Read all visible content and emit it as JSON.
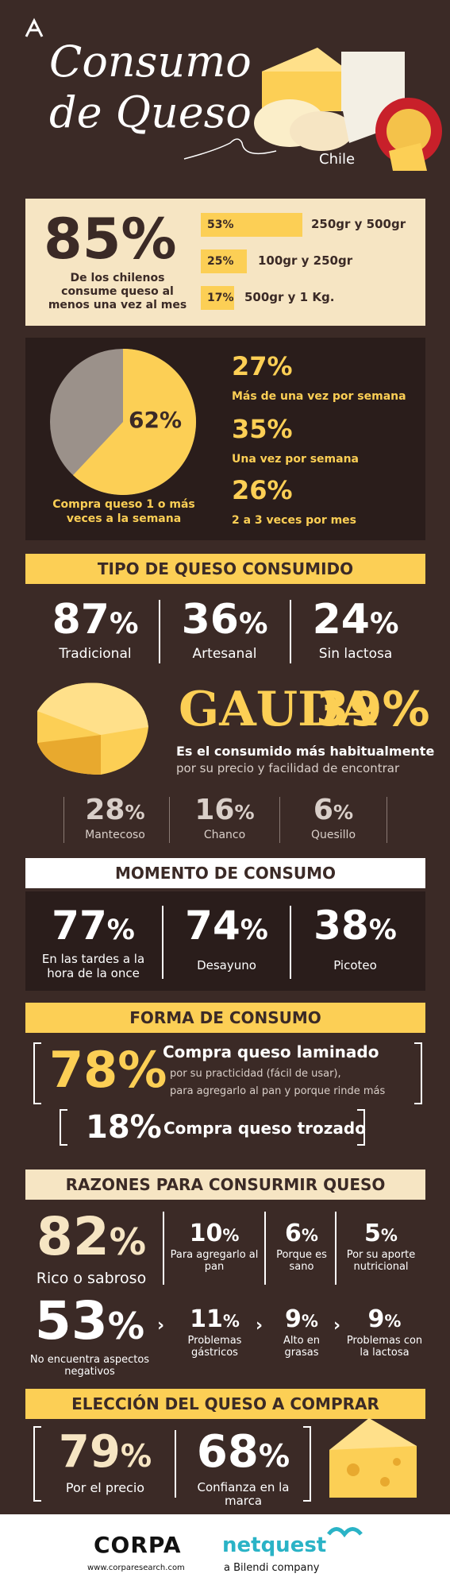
{
  "header": {
    "title_line1": "Consumo",
    "title_line2": "de Queso",
    "country": "Chile"
  },
  "intro": {
    "main_pct": "85%",
    "main_text": "De los chilenos consume queso al menos una vez al mes",
    "bars": [
      {
        "pct": "53%",
        "label": "250gr y 500gr"
      },
      {
        "pct": "25%",
        "label": "100gr y 250gr"
      },
      {
        "pct": "17%",
        "label": "500gr y 1 Kg."
      }
    ]
  },
  "frequency": {
    "pie_pct": "62%",
    "pie_caption": "Compra queso 1 o más veces a la semana",
    "items": [
      {
        "pct": "27%",
        "label": "Más de una vez por semana"
      },
      {
        "pct": "35%",
        "label": "Una vez por semana"
      },
      {
        "pct": "26%",
        "label": "2 a 3 veces por mes"
      }
    ]
  },
  "tipo": {
    "banner": "TIPO DE QUESO CONSUMIDO",
    "top": [
      {
        "pct": "87",
        "label": "Tradicional"
      },
      {
        "pct": "36",
        "label": "Artesanal"
      },
      {
        "pct": "24",
        "label": "Sin lactosa"
      }
    ],
    "gauda_name": "GAUDA",
    "gauda_pct": "39%",
    "gauda_text1": "Es el consumido más habitualmente",
    "gauda_text2": "por su precio y facilidad de encontrar",
    "bottom": [
      {
        "pct": "28",
        "label": "Mantecoso"
      },
      {
        "pct": "16",
        "label": "Chanco"
      },
      {
        "pct": "6",
        "label": "Quesillo"
      }
    ]
  },
  "momento": {
    "banner": "MOMENTO DE CONSUMO",
    "items": [
      {
        "pct": "77",
        "label": "En las tardes a la hora de la once"
      },
      {
        "pct": "74",
        "label": "Desayuno"
      },
      {
        "pct": "38",
        "label": "Picoteo"
      }
    ]
  },
  "forma": {
    "banner": "FORMA DE CONSUMO",
    "main_pct": "78%",
    "main_title": "Compra queso laminado",
    "main_sub1": "por su practicidad (fácil de usar),",
    "main_sub2": "para agregarlo al pan y porque rinde más",
    "second_pct": "18%",
    "second_label": "Compra queso trozado"
  },
  "razones": {
    "banner": "RAZONES PARA CONSURMIR QUESO",
    "main_pct": "82",
    "main_label": "Rico o sabroso",
    "top": [
      {
        "pct": "10",
        "label": "Para agregarlo al pan"
      },
      {
        "pct": "6",
        "label": "Porque es sano"
      },
      {
        "pct": "5",
        "label": "Por su aporte nutricional"
      }
    ],
    "neg_pct": "53",
    "neg_label": "No encuentra aspectos negativos",
    "neg_items": [
      {
        "pct": "11",
        "label": "Problemas gástricos"
      },
      {
        "pct": "9",
        "label": "Alto en grasas"
      },
      {
        "pct": "9",
        "label": "Problemas con la lactosa"
      }
    ]
  },
  "eleccion": {
    "banner": "ELECCIÓN DEL QUESO A COMPRAR",
    "items": [
      {
        "pct": "79",
        "label": "Por el precio"
      },
      {
        "pct": "68",
        "label": "Confianza en la marca"
      }
    ]
  },
  "footer": {
    "corpa": "CORPA",
    "corpa_url": "www.corparesearch.com",
    "netquest": "netquest",
    "bilendi": "a Bilendi company"
  },
  "colors": {
    "background": "#3b2a26",
    "accent": "#fccf55",
    "panel_beige": "#f6e5c3",
    "panel_dark": "#2a1d1b"
  }
}
